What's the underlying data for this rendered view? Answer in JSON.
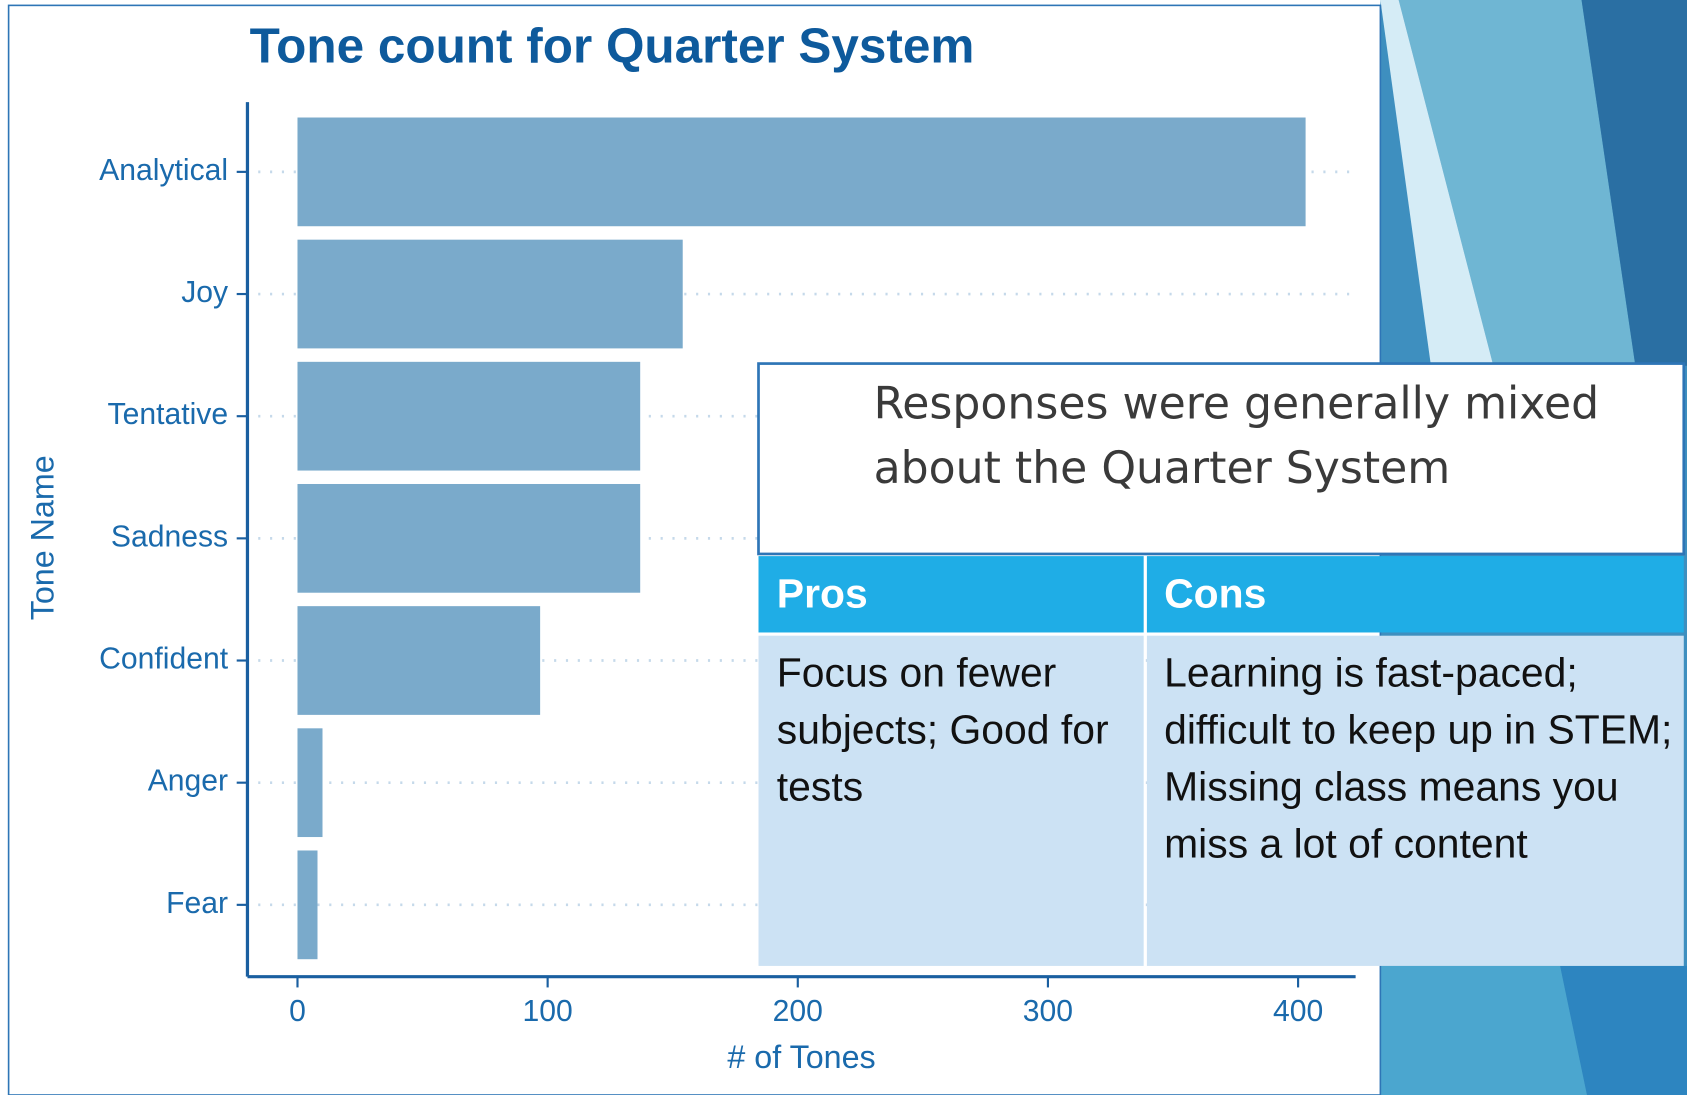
{
  "chart_data": {
    "type": "hbar",
    "title": "Tone count for Quarter System",
    "x_label": "# of Tones",
    "y_label": "Tone Name",
    "categories": [
      "Analytical",
      "Joy",
      "Tentative",
      "Sadness",
      "Confident",
      "Anger",
      "Fear"
    ],
    "values": [
      403,
      154,
      137,
      137,
      97,
      10,
      8
    ],
    "color": "#7aaacb",
    "xlim": [
      -20,
      423
    ],
    "xticks": [
      0,
      100,
      200,
      300,
      400
    ],
    "grid": true
  },
  "callout": {
    "text": "Responses were generally mixed about the Quarter System"
  },
  "table": {
    "header": [
      "Pros",
      "Cons"
    ],
    "rows": [
      [
        "Focus on fewer subjects; Good for tests",
        "Learning is fast-paced; difficult to keep up in STEM; Missing class means you miss a lot of content"
      ]
    ]
  }
}
